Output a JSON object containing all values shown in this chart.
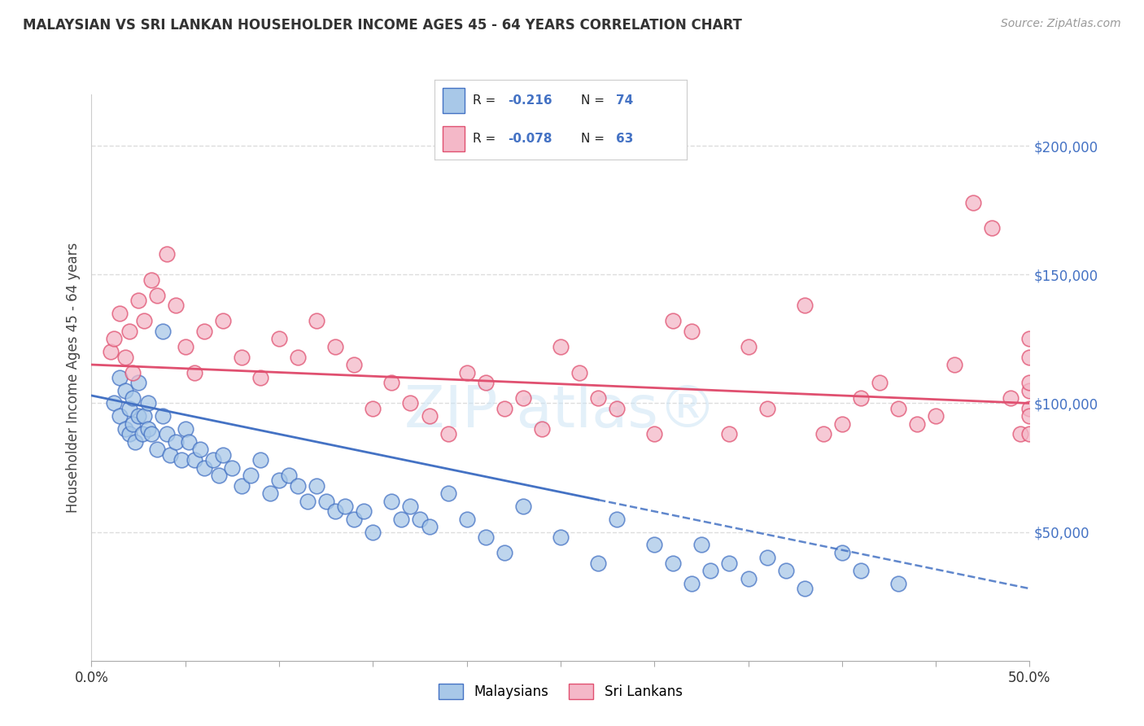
{
  "title": "MALAYSIAN VS SRI LANKAN HOUSEHOLDER INCOME AGES 45 - 64 YEARS CORRELATION CHART",
  "source": "Source: ZipAtlas.com",
  "ylabel": "Householder Income Ages 45 - 64 years",
  "xlim": [
    0.0,
    50.0
  ],
  "ylim": [
    0,
    220000
  ],
  "yticks": [
    50000,
    100000,
    150000,
    200000
  ],
  "ytick_labels": [
    "$50,000",
    "$100,000",
    "$150,000",
    "$200,000"
  ],
  "malaysian_color": "#a8c8e8",
  "srilankan_color": "#f4b8c8",
  "regression_blue_color": "#4472c4",
  "regression_pink_color": "#e05070",
  "label1": "Malaysians",
  "label2": "Sri Lankans",
  "background_color": "#ffffff",
  "grid_color": "#dddddd",
  "blue_line_solid_end": 27,
  "malaysian_x": [
    1.2,
    1.5,
    1.5,
    1.8,
    1.8,
    2.0,
    2.0,
    2.2,
    2.2,
    2.3,
    2.5,
    2.5,
    2.7,
    2.8,
    3.0,
    3.0,
    3.2,
    3.5,
    3.8,
    3.8,
    4.0,
    4.2,
    4.5,
    4.8,
    5.0,
    5.2,
    5.5,
    5.8,
    6.0,
    6.5,
    6.8,
    7.0,
    7.5,
    8.0,
    8.5,
    9.0,
    9.5,
    10.0,
    10.5,
    11.0,
    11.5,
    12.0,
    12.5,
    13.0,
    13.5,
    14.0,
    14.5,
    15.0,
    16.0,
    16.5,
    17.0,
    17.5,
    18.0,
    19.0,
    20.0,
    21.0,
    22.0,
    23.0,
    25.0,
    27.0,
    28.0,
    30.0,
    31.0,
    32.0,
    32.5,
    33.0,
    34.0,
    35.0,
    36.0,
    37.0,
    38.0,
    40.0,
    41.0,
    43.0
  ],
  "malaysian_y": [
    100000,
    95000,
    110000,
    90000,
    105000,
    88000,
    98000,
    92000,
    102000,
    85000,
    95000,
    108000,
    88000,
    95000,
    100000,
    90000,
    88000,
    82000,
    128000,
    95000,
    88000,
    80000,
    85000,
    78000,
    90000,
    85000,
    78000,
    82000,
    75000,
    78000,
    72000,
    80000,
    75000,
    68000,
    72000,
    78000,
    65000,
    70000,
    72000,
    68000,
    62000,
    68000,
    62000,
    58000,
    60000,
    55000,
    58000,
    50000,
    62000,
    55000,
    60000,
    55000,
    52000,
    65000,
    55000,
    48000,
    42000,
    60000,
    48000,
    38000,
    55000,
    45000,
    38000,
    30000,
    45000,
    35000,
    38000,
    32000,
    40000,
    35000,
    28000,
    42000,
    35000,
    30000
  ],
  "srilankan_x": [
    1.0,
    1.2,
    1.5,
    1.8,
    2.0,
    2.2,
    2.5,
    2.8,
    3.2,
    3.5,
    4.0,
    4.5,
    5.0,
    5.5,
    6.0,
    7.0,
    8.0,
    9.0,
    10.0,
    11.0,
    12.0,
    13.0,
    14.0,
    15.0,
    16.0,
    17.0,
    18.0,
    19.0,
    20.0,
    21.0,
    22.0,
    23.0,
    24.0,
    25.0,
    26.0,
    27.0,
    28.0,
    30.0,
    31.0,
    32.0,
    34.0,
    35.0,
    36.0,
    38.0,
    39.0,
    40.0,
    41.0,
    42.0,
    43.0,
    44.0,
    45.0,
    46.0,
    47.0,
    48.0,
    49.0,
    49.5,
    50.0,
    50.0,
    50.0,
    50.0,
    50.0,
    50.0,
    50.0
  ],
  "srilankan_y": [
    120000,
    125000,
    135000,
    118000,
    128000,
    112000,
    140000,
    132000,
    148000,
    142000,
    158000,
    138000,
    122000,
    112000,
    128000,
    132000,
    118000,
    110000,
    125000,
    118000,
    132000,
    122000,
    115000,
    98000,
    108000,
    100000,
    95000,
    88000,
    112000,
    108000,
    98000,
    102000,
    90000,
    122000,
    112000,
    102000,
    98000,
    88000,
    132000,
    128000,
    88000,
    122000,
    98000,
    138000,
    88000,
    92000,
    102000,
    108000,
    98000,
    92000,
    95000,
    115000,
    178000,
    168000,
    102000,
    88000,
    98000,
    118000,
    125000,
    105000,
    95000,
    108000,
    88000
  ]
}
